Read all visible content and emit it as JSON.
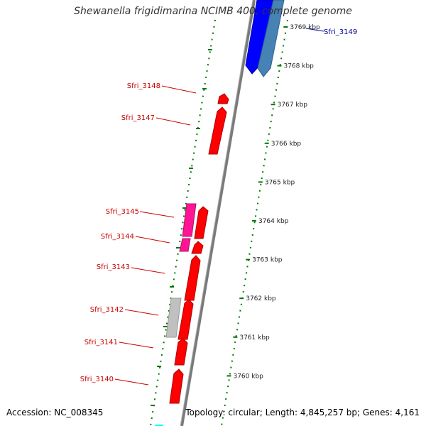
{
  "title": "Shewanella frigidimarina NCIMB 400, complete genome",
  "accession_text": "Accession: NC_008345",
  "topology_text": "Topology: circular; Length: 4,845,257 bp; Genes: 4,161",
  "colors": {
    "forward_gene": "#ff0000",
    "reverse_gene": "#0000ff",
    "reverse_gene_alt": "#4682b4",
    "magenta_gene": "#ff1493",
    "grey_gene": "#b4b4b4",
    "backbone": "#808080",
    "tick_dots": "#007700",
    "forward_label": "#cc0000",
    "reverse_label": "#000099"
  },
  "kbp_ticks": [
    {
      "label": "3769 kbp",
      "kbp": 3769
    },
    {
      "label": "3768 kbp",
      "kbp": 3768
    },
    {
      "label": "3767 kbp",
      "kbp": 3767
    },
    {
      "label": "3766 kbp",
      "kbp": 3766
    },
    {
      "label": "3765 kbp",
      "kbp": 3765
    },
    {
      "label": "3764 kbp",
      "kbp": 3764
    },
    {
      "label": "3763 kbp",
      "kbp": 3763
    },
    {
      "label": "3762 kbp",
      "kbp": 3762
    },
    {
      "label": "3761 kbp",
      "kbp": 3761
    },
    {
      "label": "3760 kbp",
      "kbp": 3760
    }
  ],
  "gene_labels": [
    {
      "name": "Sfri_3149",
      "strand": "reverse"
    },
    {
      "name": "Sfri_3148",
      "strand": "forward"
    },
    {
      "name": "Sfri_3147",
      "strand": "forward"
    },
    {
      "name": "Sfri_3145",
      "strand": "forward"
    },
    {
      "name": "Sfri_3144",
      "strand": "forward"
    },
    {
      "name": "Sfri_3143",
      "strand": "forward"
    },
    {
      "name": "Sfri_3142",
      "strand": "forward"
    },
    {
      "name": "Sfri_3141",
      "strand": "forward"
    },
    {
      "name": "Sfri_3140",
      "strand": "forward"
    }
  ]
}
